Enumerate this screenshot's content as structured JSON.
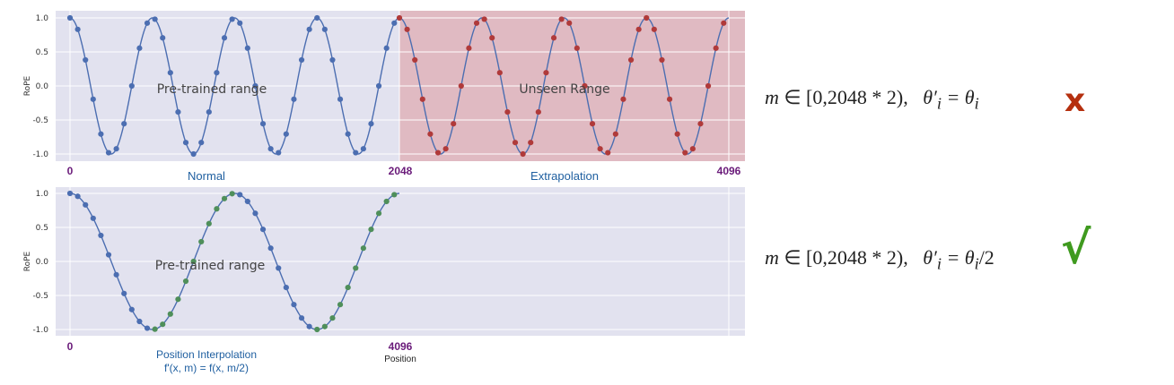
{
  "chart_data": [
    {
      "type": "line",
      "ylabel": "RoPE",
      "xlim": [
        0,
        4096
      ],
      "ylim": [
        -1.0,
        1.0
      ],
      "y_ticks": [
        "1.0",
        "0.5",
        "0.0",
        "-0.5",
        "-1.0"
      ],
      "grid": true,
      "x_markers": [
        {
          "x": 0,
          "label": "0"
        },
        {
          "x": 2048,
          "label": "2048"
        },
        {
          "x": 4096,
          "label": "4096"
        }
      ],
      "region_labels": [
        {
          "x": 1024,
          "label": "Normal"
        },
        {
          "x": 3072,
          "label": "Extrapolation"
        }
      ],
      "annotations": [
        {
          "x": 1024,
          "y": 0.0,
          "text": "Pre-trained range"
        },
        {
          "x": 3072,
          "y": 0.0,
          "text": "Unseen Range"
        }
      ],
      "shaded_range": [
        2048,
        4096
      ],
      "curve": {
        "function": "cos",
        "period": 512,
        "x_range": [
          0,
          4096
        ]
      },
      "series": [
        {
          "name": "",
          "x_range": [
            0,
            2048
          ],
          "point_step": 48,
          "color": "#4c6eb1"
        },
        {
          "name": "",
          "x_range": [
            2048,
            4096
          ],
          "point_step": 48,
          "color": "#b03a3a"
        }
      ]
    },
    {
      "type": "line",
      "ylabel": "RoPE",
      "xlim": [
        0,
        4096
      ],
      "ylim": [
        -1.0,
        1.0
      ],
      "y_ticks": [
        "1.0",
        "0.5",
        "0.0",
        "-0.5",
        "-1.0"
      ],
      "grid": true,
      "x_markers": [
        {
          "x": 0,
          "label": "0"
        },
        {
          "x": 4096,
          "label": "4096"
        }
      ],
      "xlabel": "Position",
      "region_labels": [
        {
          "x": 1024,
          "label": "Position Interpolation",
          "sub": "f'(x, m) = f(x, m/2)"
        }
      ],
      "annotations": [
        {
          "x": 1024,
          "y": 0.0,
          "text": "Pre-trained range"
        }
      ],
      "curve": {
        "function": "cos",
        "period": 1024,
        "x_range": [
          0,
          4096
        ]
      },
      "series": [
        {
          "name": "",
          "x_range": [
            0,
            4096
          ],
          "point_step": 96,
          "color_pattern": [
            "#4c6eb1",
            "#4f8f5a"
          ]
        }
      ]
    }
  ],
  "colors": {
    "plot_bg": "#e2e2ef",
    "grid": "#ffffff",
    "line": "#4c6eb1",
    "blue_point": "#4c6eb1",
    "red_point": "#b03a3a",
    "green_point": "#4f8f5a",
    "shade": "rgba(220,120,120,0.38)",
    "cross": "#b5300f",
    "check": "#3f9a1f"
  },
  "formulas": [
    {
      "m": "m",
      "set": "∈ [0,2048 * 2),",
      "theta": "θ′",
      "i": "i",
      "eq": "= θ",
      "rhs_i": "i",
      "tail": "",
      "mark": "x",
      "mark_name": "cross-icon"
    },
    {
      "m": "m",
      "set": "∈ [0,2048 * 2),",
      "theta": "θ′",
      "i": "i",
      "eq": "= θ",
      "rhs_i": "i",
      "tail": "/2",
      "mark": "√",
      "mark_name": "check-icon"
    }
  ]
}
